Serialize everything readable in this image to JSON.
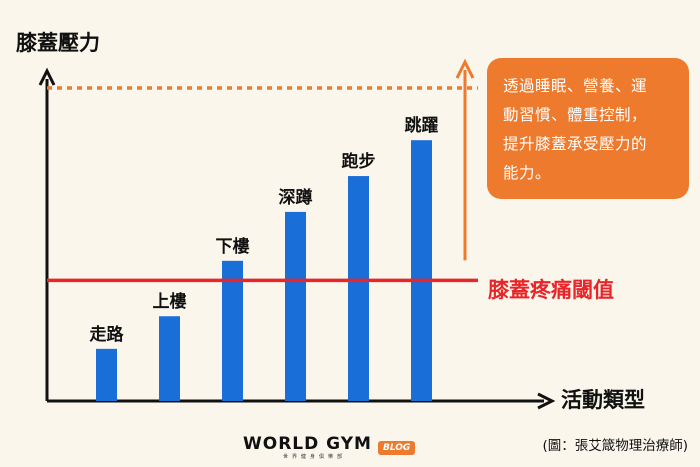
{
  "chart_data": {
    "type": "bar",
    "ylabel": "膝蓋壓力",
    "xlabel": "活動類型",
    "categories": [
      "走路",
      "上樓",
      "下樓",
      "深蹲",
      "跑步",
      "跳躍"
    ],
    "values": [
      1.6,
      2.6,
      4.3,
      5.8,
      6.9,
      8.0
    ],
    "ylim": [
      0,
      10
    ],
    "threshold": {
      "label": "膝蓋疼痛閾值",
      "value": 3.7,
      "color": "#E8262A"
    },
    "improved_threshold": {
      "value": 9.6,
      "color": "#EE7A2E"
    },
    "bar_color": "#1A6ED8",
    "grid": false
  },
  "callout": {
    "lines": [
      "透過睡眠、營養、運",
      "動習慣、體重控制，",
      "提升膝蓋承受壓力的",
      "能力。"
    ],
    "color": "#EE7A2E"
  },
  "logo": {
    "main": "WORLD GYM",
    "sub": "世界健身俱樂部",
    "badge": "BLOG"
  },
  "source": "(圖：張艾箴物理治療師)"
}
